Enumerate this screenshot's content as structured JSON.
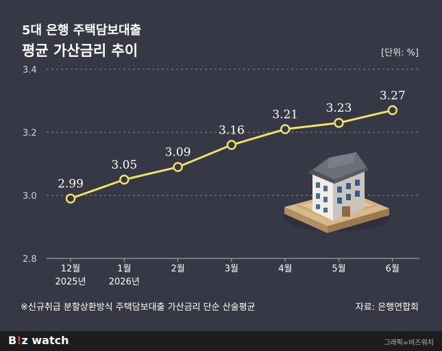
{
  "title_line1": "5대 은행 주택담보대출",
  "title_line2": "평균 가산금리 추이",
  "unit_label": "[단위: %]",
  "footnote": "※신규취급 분할상환방식 주택담보대출 가산금리 단순 산술평균",
  "source": "자료: 은행연합회",
  "logo": {
    "part1": "B",
    "mark": "!",
    "part2": "z watch"
  },
  "credit": "그래픽=비즈워치",
  "colors": {
    "background": "#363845",
    "line": "#f2e16a",
    "marker_fill": "#363845",
    "grid": "#8a8c99",
    "text": "#ffffff"
  },
  "chart_data": {
    "type": "line",
    "categories": [
      [
        "12월",
        "2025년"
      ],
      [
        "1월",
        "2026년"
      ],
      [
        "2월"
      ],
      [
        "3월"
      ],
      [
        "4월"
      ],
      [
        "5월"
      ],
      [
        "6월"
      ]
    ],
    "values": [
      2.99,
      3.05,
      3.09,
      3.16,
      3.21,
      3.23,
      3.27
    ],
    "value_labels": [
      "2.99",
      "3.05",
      "3.09",
      "3.16",
      "3.21",
      "3.23",
      "3.27"
    ],
    "yticks": [
      "3.4",
      "3.2",
      "3.0",
      "2.8"
    ],
    "ylim": [
      2.8,
      3.4
    ],
    "grid": "dashed horizontal",
    "illustration": "house-icon"
  }
}
